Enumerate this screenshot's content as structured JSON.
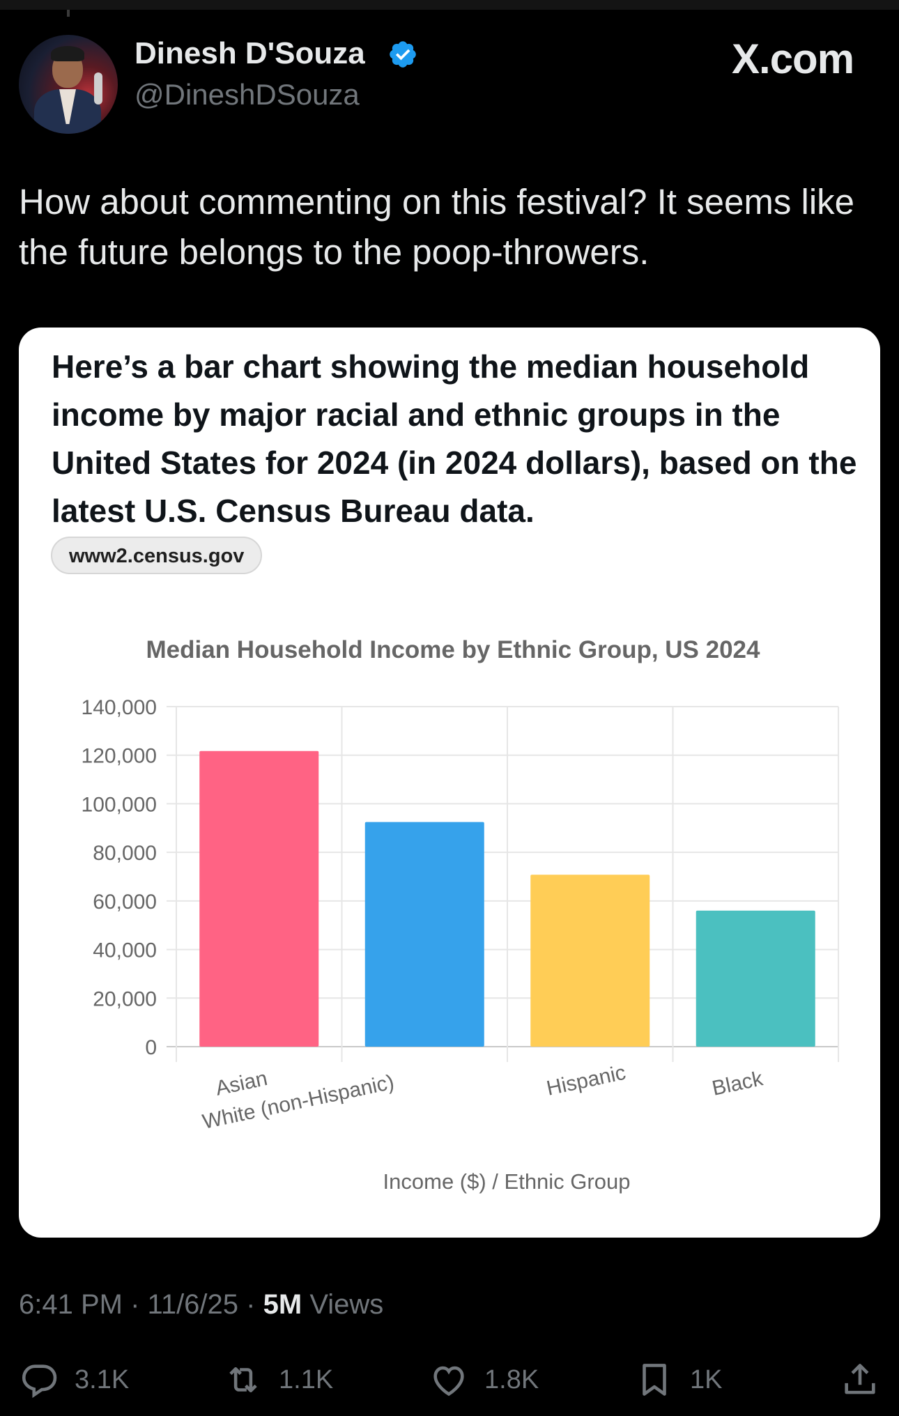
{
  "author": {
    "name": "Dinesh D'Souza",
    "handle": "@DineshDSouza"
  },
  "brand": "X.com",
  "tweet": {
    "text": "How about commenting on this festival? It seems like the future belongs to the poop-throwers."
  },
  "card": {
    "text": "Here’s a bar chart showing the median household income by major racial and ethnic groups in the United States for 2024 (in 2024 dollars), based on the latest U.S. Census Bureau data.",
    "source": "www2.census.gov"
  },
  "chart_data": {
    "type": "bar",
    "title": "Median Household Income by Ethnic Group, US 2024",
    "xlabel": "Income ($) / Ethnic Group",
    "ylabel": "",
    "categories": [
      "Asian",
      "White (non-Hispanic)",
      "Hispanic",
      "Black"
    ],
    "values": [
      121700,
      92500,
      70800,
      56000
    ],
    "colors": [
      "#ff6384",
      "#36a2eb",
      "#ffcd56",
      "#4bc0c0"
    ],
    "ylim": [
      0,
      140000
    ],
    "yticks": [
      "0",
      "20,000",
      "40,000",
      "60,000",
      "80,000",
      "100,000",
      "120,000",
      "140,000"
    ],
    "grid": true
  },
  "meta": {
    "time": "6:41 PM",
    "date": "11/6/25",
    "views_count": "5M",
    "views_label": "Views",
    "separator": "·"
  },
  "actions": {
    "replies": "3.1K",
    "reposts": "1.1K",
    "likes": "1.8K",
    "bookmarks": "1K"
  },
  "colors": {
    "background": "#000000",
    "verified": "#1d9bf0",
    "secondary_text": "#71767b"
  }
}
